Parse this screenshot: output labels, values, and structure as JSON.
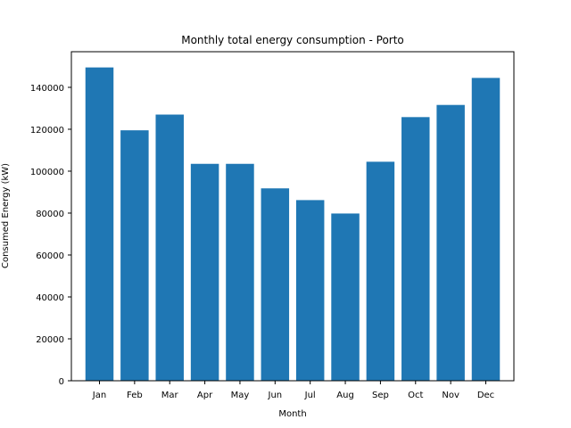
{
  "chart_data": {
    "type": "bar",
    "title": "Monthly total energy consumption - Porto",
    "xlabel": "Month",
    "ylabel": "Consumed Energy (kW)",
    "categories": [
      "Jan",
      "Feb",
      "Mar",
      "Apr",
      "May",
      "Jun",
      "Jul",
      "Aug",
      "Sep",
      "Oct",
      "Nov",
      "Dec"
    ],
    "values": [
      149500,
      119500,
      127000,
      103500,
      103500,
      91800,
      86200,
      79800,
      104500,
      125800,
      131600,
      144500
    ],
    "ylim": [
      0,
      157000
    ],
    "yticks": [
      0,
      20000,
      40000,
      60000,
      80000,
      100000,
      120000,
      140000
    ],
    "ytick_labels": [
      "0",
      "20000",
      "40000",
      "60000",
      "80000",
      "100000",
      "120000",
      "140000"
    ],
    "grid": false,
    "bar_color": "#1f77b4"
  }
}
